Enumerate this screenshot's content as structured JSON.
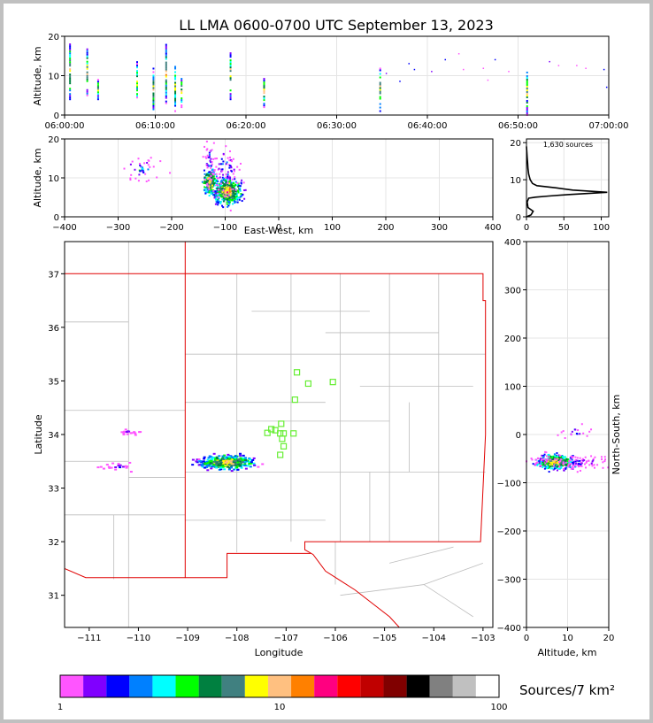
{
  "chart_data": [
    {
      "type": "scatter",
      "panel": "altitude-time",
      "title": "LL LMA 0600-0700 UTC September 13, 2023",
      "ylabel": "Altitude, km",
      "xlim": [
        "06:00:00",
        "07:00:00"
      ],
      "ylim": [
        0,
        20
      ],
      "xticks": [
        "06:00:00",
        "06:10:00",
        "06:20:00",
        "06:30:00",
        "06:40:00",
        "06:50:00",
        "07:00:00"
      ],
      "yticks": [
        "0",
        "10",
        "20"
      ],
      "grid": true,
      "clusters": [
        {
          "t_min": 0.6,
          "z_min": 4,
          "z_max": 18
        },
        {
          "t_min": 2.5,
          "z_min": 5,
          "z_max": 17
        },
        {
          "t_min": 3.7,
          "z_min": 4,
          "z_max": 9
        },
        {
          "t_min": 8.0,
          "z_min": 4,
          "z_max": 14
        },
        {
          "t_min": 9.8,
          "z_min": 1,
          "z_max": 12
        },
        {
          "t_min": 11.2,
          "z_min": 3,
          "z_max": 18
        },
        {
          "t_min": 12.2,
          "z_min": 1,
          "z_max": 13
        },
        {
          "t_min": 12.9,
          "z_min": 2,
          "z_max": 10
        },
        {
          "t_min": 18.3,
          "z_min": 4,
          "z_max": 16
        },
        {
          "t_min": 22.0,
          "z_min": 2,
          "z_max": 10
        },
        {
          "t_min": 34.8,
          "z_min": 1,
          "z_max": 12
        },
        {
          "t_min": 51.0,
          "z_min": 0,
          "z_max": 12
        }
      ],
      "scattered_sources": [
        [
          35.5,
          10.5
        ],
        [
          37.0,
          8.5
        ],
        [
          38.0,
          13.0
        ],
        [
          38.6,
          11.5
        ],
        [
          40.5,
          11.0
        ],
        [
          42.0,
          14.0
        ],
        [
          43.5,
          15.5
        ],
        [
          44.0,
          11.5
        ],
        [
          46.2,
          11.8
        ],
        [
          46.7,
          8.8
        ],
        [
          47.5,
          14.0
        ],
        [
          49.0,
          11.0
        ],
        [
          53.5,
          13.5
        ],
        [
          54.5,
          12.5
        ],
        [
          56.5,
          12.5
        ],
        [
          57.5,
          11.8
        ],
        [
          59.5,
          11.5
        ],
        [
          59.8,
          7.0
        ]
      ]
    },
    {
      "type": "heatmap",
      "panel": "altitude-eastwest",
      "xlabel": "East-West, km",
      "ylabel": "Altitude, km",
      "xlim": [
        -400,
        400
      ],
      "ylim": [
        0,
        20
      ],
      "xticks": [
        "−400",
        "−300",
        "−200",
        "−100",
        "0",
        "100",
        "200",
        "300",
        "400"
      ],
      "yticks": [
        "0",
        "10",
        "20"
      ],
      "grid": true,
      "clusters": [
        {
          "x": -95,
          "z": 6.5,
          "sx": 12,
          "sz": 1.6,
          "n": 480
        },
        {
          "x": -128,
          "z": 9.0,
          "sx": 6,
          "sz": 1.5,
          "n": 180
        },
        {
          "x": -130,
          "z": 14.0,
          "sx": 5,
          "sz": 3.0,
          "n": 45
        },
        {
          "x": -100,
          "z": 12.0,
          "sx": 12,
          "sz": 3.0,
          "n": 70
        },
        {
          "x": -255,
          "z": 12.5,
          "sx": 18,
          "sz": 1.6,
          "n": 40
        }
      ]
    },
    {
      "type": "line",
      "panel": "altitude-histogram",
      "annotation": "1,630 sources",
      "xlim": [
        0,
        110
      ],
      "ylim": [
        0,
        21
      ],
      "xticks": [
        "0",
        "50",
        "100"
      ],
      "yticks": [
        "0",
        "10",
        "20"
      ],
      "x": [
        0,
        3,
        5,
        4,
        3,
        5,
        6,
        8,
        10,
        15,
        8,
        5,
        25,
        55,
        108,
        60,
        20,
        8,
        5,
        4,
        3,
        2,
        1,
        1,
        0
      ],
      "y": [
        0,
        1,
        2,
        3,
        4,
        5,
        6,
        7,
        8,
        9,
        10,
        11,
        4.5,
        5.5,
        6.5,
        7.5,
        8.5,
        9.5,
        12,
        13,
        14,
        15,
        16,
        17,
        18
      ]
    },
    {
      "type": "heatmap",
      "panel": "plan-view",
      "xlabel": "Longitude",
      "ylabel": "Latitude",
      "xlim": [
        -111.5,
        -102.8
      ],
      "ylim": [
        30.4,
        37.6
      ],
      "xticks": [
        "−111",
        "−110",
        "−109",
        "−108",
        "−107",
        "−106",
        "−105",
        "−104",
        "−103"
      ],
      "yticks": [
        "31",
        "32",
        "33",
        "34",
        "35",
        "36",
        "37"
      ],
      "clusters": [
        {
          "lon": -108.2,
          "lat": 33.48,
          "slon": 0.25,
          "slat": 0.06,
          "n": 420
        },
        {
          "lon": -110.2,
          "lat": 34.05,
          "slon": 0.12,
          "slat": 0.03,
          "n": 18
        },
        {
          "lon": -110.4,
          "lat": 33.4,
          "slon": 0.15,
          "slat": 0.06,
          "n": 20
        }
      ],
      "stations": [
        [
          -106.78,
          35.16
        ],
        [
          -106.55,
          34.95
        ],
        [
          -106.05,
          34.98
        ],
        [
          -106.82,
          34.65
        ],
        [
          -107.38,
          34.03
        ],
        [
          -107.22,
          34.08
        ],
        [
          -107.12,
          34.02
        ],
        [
          -107.05,
          34.02
        ],
        [
          -106.85,
          34.02
        ],
        [
          -107.3,
          34.1
        ],
        [
          -107.1,
          34.2
        ],
        [
          -107.08,
          33.92
        ],
        [
          -107.05,
          33.78
        ],
        [
          -107.12,
          33.62
        ]
      ]
    },
    {
      "type": "heatmap",
      "panel": "northsouth-altitude",
      "xlabel": "Altitude, km",
      "ylabel": "North-South, km",
      "xlim": [
        0,
        20
      ],
      "ylim": [
        -400,
        400
      ],
      "xticks": [
        "0",
        "10",
        "20"
      ],
      "yticks": [
        "−400",
        "−300",
        "−200",
        "−100",
        "0",
        "100",
        "200",
        "300",
        "400"
      ],
      "grid": true,
      "clusters": [
        {
          "z": 7,
          "ns": -57,
          "sz": 2.2,
          "sns": 7,
          "n": 420
        },
        {
          "z": 13,
          "ns": -58,
          "sz": 3.5,
          "sns": 8,
          "n": 90
        },
        {
          "z": 12,
          "ns": 5,
          "sz": 2.0,
          "sns": 6,
          "n": 18
        },
        {
          "z": 3.5,
          "ns": -55,
          "sz": 1.0,
          "sns": 6,
          "n": 25
        }
      ]
    }
  ],
  "colorbar": {
    "label": "Sources/7 km²",
    "tick_labels": [
      "1",
      "10",
      "100"
    ],
    "colors": [
      "#ff55ff",
      "#8000ff",
      "#0000ff",
      "#0080ff",
      "#00ffff",
      "#00ff00",
      "#008040",
      "#408080",
      "#ffff00",
      "#ffc080",
      "#ff8000",
      "#ff0080",
      "#ff0000",
      "#c00000",
      "#800000",
      "#000000",
      "#808080",
      "#c0c0c0",
      "#ffffff"
    ]
  }
}
